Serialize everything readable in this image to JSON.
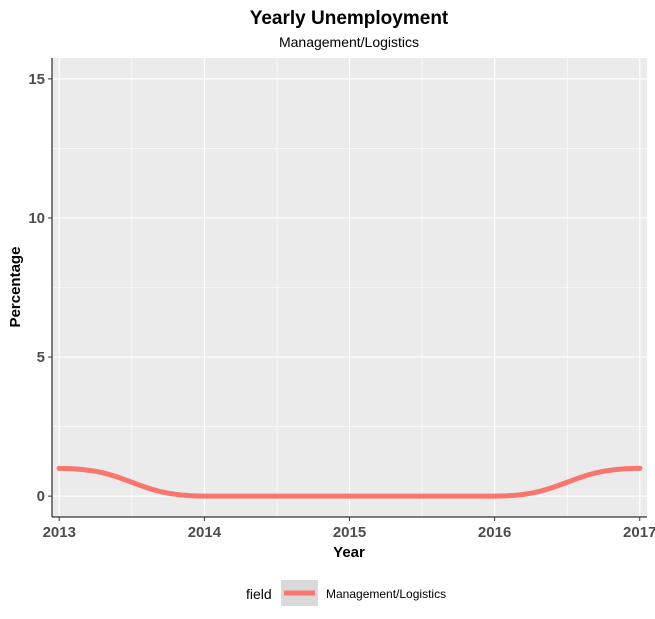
{
  "chart_data": {
    "type": "line",
    "title": "Yearly Unemployment",
    "subtitle": "Management/Logistics",
    "xlabel": "Year",
    "ylabel": "Percentage",
    "x": [
      2013,
      2014,
      2015,
      2016,
      2017
    ],
    "xlim": [
      2012.95,
      2017.05
    ],
    "ylim": [
      -0.75,
      15.75
    ],
    "x_ticks": [
      2013,
      2014,
      2015,
      2016,
      2017
    ],
    "y_ticks": [
      0,
      5,
      10,
      15
    ],
    "x_tick_labels": [
      "2013",
      "2014",
      "2015",
      "2016",
      "2017"
    ],
    "y_tick_labels": [
      "0",
      "5",
      "10",
      "15"
    ],
    "series": [
      {
        "name": "Management/Logistics",
        "color": "#f8766d",
        "values": [
          1.0,
          0.0,
          0.0,
          0.0,
          1.0
        ]
      }
    ],
    "grid": true,
    "panel_background": "#ebebeb",
    "legend": {
      "position": "bottom",
      "title": "field",
      "labels": [
        "Management/Logistics"
      ]
    }
  }
}
